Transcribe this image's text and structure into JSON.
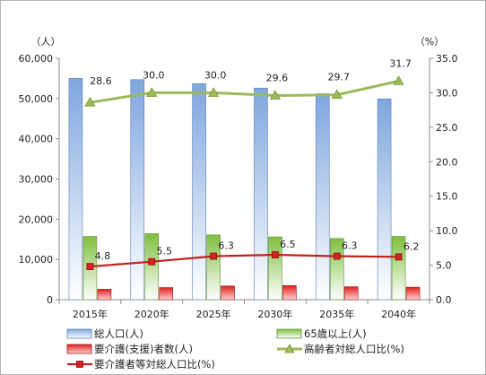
{
  "chart_data": {
    "type": "bar",
    "categories": [
      "2015年",
      "2020年",
      "2025年",
      "2030年",
      "2035年",
      "2040年"
    ],
    "left_axis": {
      "unit_label": "（人）",
      "ylim": [
        0,
        60000
      ],
      "ticks": [
        0,
        10000,
        20000,
        30000,
        40000,
        50000,
        60000
      ],
      "tick_labels": [
        "0",
        "10,000",
        "20,000",
        "30,000",
        "40,000",
        "50,000",
        "60,000"
      ]
    },
    "right_axis": {
      "unit_label": "（%）",
      "ylim": [
        0,
        35
      ],
      "ticks": [
        0,
        5,
        10,
        15,
        20,
        25,
        30,
        35
      ],
      "tick_labels": [
        "0.0",
        "5.0",
        "10.0",
        "15.0",
        "20.0",
        "25.0",
        "30.0",
        "35.0"
      ]
    },
    "series": [
      {
        "name": "総人口(人)",
        "kind": "bar",
        "axis": "left",
        "color": "#7ea6de",
        "values": [
          55000,
          54700,
          53700,
          52600,
          51200,
          49900
        ]
      },
      {
        "name": "65歳以上(人)",
        "kind": "bar",
        "axis": "left",
        "color": "#8cc152",
        "values": [
          15700,
          16400,
          16100,
          15600,
          15200,
          15700
        ]
      },
      {
        "name": "要介護(支援)者数(人)",
        "kind": "bar",
        "axis": "left",
        "color": "#e03030",
        "values": [
          2600,
          3000,
          3400,
          3500,
          3200,
          3100
        ]
      },
      {
        "name": "高齢者対総人口比(%)",
        "kind": "line",
        "axis": "right",
        "color": "#9bbb59",
        "marker": "triangle",
        "values": [
          28.6,
          30.0,
          30.0,
          29.6,
          29.7,
          31.7
        ],
        "labels": [
          "28.6",
          "30.0",
          "30.0",
          "29.6",
          "29.7",
          "31.7"
        ]
      },
      {
        "name": "要介護者等対総人口比(%)",
        "kind": "line",
        "axis": "right",
        "color": "#c0201c",
        "marker": "square",
        "values": [
          4.8,
          5.5,
          6.3,
          6.5,
          6.3,
          6.2
        ],
        "labels": [
          "4.8",
          "5.5",
          "6.3",
          "6.5",
          "6.3",
          "6.2"
        ]
      }
    ],
    "grid": false,
    "legend_position": "bottom"
  }
}
